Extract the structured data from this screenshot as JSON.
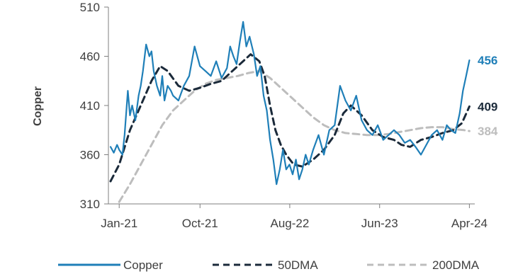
{
  "chart_data": {
    "type": "line",
    "ylabel": "Copper",
    "xlabel": "",
    "ylim": [
      310,
      510
    ],
    "yticks": [
      310,
      360,
      410,
      460,
      510
    ],
    "xtick_labels": [
      "Jan-21",
      "Oct-21",
      "Aug-22",
      "Jun-23",
      "Apr-24"
    ],
    "xtick_positions": [
      2021.0,
      2021.75,
      2022.583,
      2023.417,
      2024.25
    ],
    "xlim": [
      2020.9,
      2024.3
    ],
    "grid": false,
    "legend_position": "bottom",
    "series": [
      {
        "name": "Copper",
        "color": "#1F7FB8",
        "style": "solid",
        "end_label": "456",
        "x": [
          2020.92,
          2020.95,
          2020.98,
          2021.0,
          2021.03,
          2021.05,
          2021.08,
          2021.1,
          2021.12,
          2021.15,
          2021.18,
          2021.2,
          2021.22,
          2021.25,
          2021.28,
          2021.3,
          2021.32,
          2021.35,
          2021.38,
          2021.4,
          2021.42,
          2021.45,
          2021.48,
          2021.5,
          2021.55,
          2021.6,
          2021.65,
          2021.7,
          2021.75,
          2021.8,
          2021.85,
          2021.9,
          2021.95,
          2022.0,
          2022.03,
          2022.06,
          2022.09,
          2022.12,
          2022.15,
          2022.18,
          2022.21,
          2022.25,
          2022.28,
          2022.31,
          2022.34,
          2022.37,
          2022.4,
          2022.43,
          2022.46,
          2022.49,
          2022.52,
          2022.55,
          2022.58,
          2022.61,
          2022.64,
          2022.67,
          2022.7,
          2022.73,
          2022.76,
          2022.8,
          2022.85,
          2022.9,
          2022.95,
          2023.0,
          2023.05,
          2023.1,
          2023.15,
          2023.2,
          2023.25,
          2023.3,
          2023.35,
          2023.4,
          2023.45,
          2023.5,
          2023.55,
          2023.6,
          2023.65,
          2023.7,
          2023.75,
          2023.8,
          2023.85,
          2023.9,
          2023.95,
          2024.0,
          2024.04,
          2024.08,
          2024.12,
          2024.16,
          2024.19,
          2024.22,
          2024.25
        ],
        "y": [
          368,
          362,
          370,
          365,
          360,
          380,
          425,
          400,
          410,
          395,
          420,
          430,
          445,
          472,
          460,
          465,
          445,
          430,
          420,
          440,
          415,
          430,
          425,
          420,
          415,
          430,
          440,
          470,
          450,
          445,
          440,
          455,
          438,
          448,
          470,
          460,
          452,
          475,
          495,
          470,
          480,
          462,
          440,
          450,
          420,
          405,
          375,
          355,
          330,
          345,
          365,
          345,
          350,
          340,
          355,
          335,
          345,
          360,
          350,
          365,
          380,
          360,
          385,
          390,
          430,
          415,
          405,
          420,
          395,
          385,
          380,
          390,
          375,
          380,
          385,
          380,
          372,
          375,
          368,
          360,
          370,
          380,
          385,
          375,
          390,
          385,
          382,
          402,
          425,
          440,
          456
        ]
      },
      {
        "name": "50DMA",
        "color": "#1B2A3A",
        "style": "dashed",
        "end_label": "409",
        "x": [
          2020.92,
          2021.0,
          2021.1,
          2021.2,
          2021.3,
          2021.38,
          2021.45,
          2021.55,
          2021.65,
          2021.75,
          2021.85,
          2021.95,
          2022.05,
          2022.15,
          2022.22,
          2022.3,
          2022.35,
          2022.4,
          2022.45,
          2022.5,
          2022.55,
          2022.62,
          2022.7,
          2022.8,
          2022.9,
          2023.0,
          2023.08,
          2023.15,
          2023.25,
          2023.35,
          2023.45,
          2023.55,
          2023.62,
          2023.7,
          2023.8,
          2023.9,
          2024.0,
          2024.1,
          2024.18,
          2024.25
        ],
        "y": [
          333,
          350,
          385,
          410,
          435,
          450,
          445,
          430,
          425,
          428,
          432,
          435,
          445,
          455,
          462,
          455,
          440,
          410,
          385,
          370,
          360,
          350,
          348,
          355,
          365,
          380,
          402,
          410,
          400,
          385,
          378,
          375,
          370,
          368,
          375,
          378,
          382,
          385,
          392,
          409
        ]
      },
      {
        "name": "200DMA",
        "color": "#BDBDBD",
        "style": "dashed",
        "end_label": "384",
        "x": [
          2021.0,
          2021.1,
          2021.2,
          2021.3,
          2021.4,
          2021.5,
          2021.6,
          2021.7,
          2021.8,
          2021.9,
          2022.0,
          2022.1,
          2022.2,
          2022.3,
          2022.4,
          2022.5,
          2022.6,
          2022.7,
          2022.8,
          2022.9,
          2023.0,
          2023.1,
          2023.2,
          2023.3,
          2023.4,
          2023.5,
          2023.6,
          2023.7,
          2023.8,
          2023.9,
          2024.0,
          2024.1,
          2024.2,
          2024.25
        ],
        "y": [
          312,
          330,
          350,
          370,
          390,
          405,
          415,
          425,
          432,
          436,
          438,
          440,
          443,
          445,
          438,
          428,
          418,
          408,
          398,
          390,
          385,
          382,
          381,
          380,
          380,
          381,
          383,
          385,
          387,
          388,
          388,
          386,
          385,
          384
        ]
      }
    ]
  }
}
